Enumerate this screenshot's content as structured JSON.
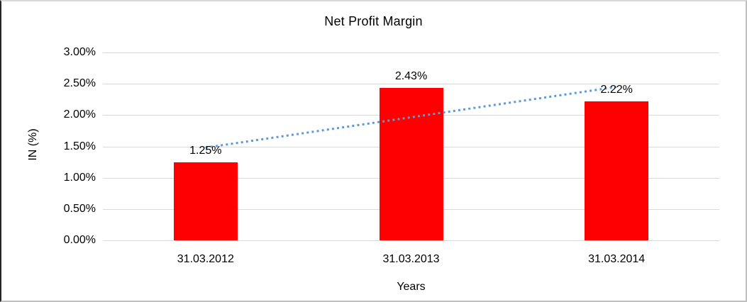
{
  "chart_data": {
    "type": "bar",
    "title": "Net Profit Margin",
    "xlabel": "Years",
    "ylabel": "IN (%)",
    "categories": [
      "31.03.2012",
      "31.03.2013",
      "31.03.2014"
    ],
    "values": [
      1.25,
      2.43,
      2.22
    ],
    "data_labels": [
      "1.25%",
      "2.43%",
      "2.22%"
    ],
    "y_ticks": [
      {
        "label": "3.00%",
        "value": 3.0
      },
      {
        "label": "2.50%",
        "value": 2.5
      },
      {
        "label": "2.00%",
        "value": 2.0
      },
      {
        "label": "1.50%",
        "value": 1.5
      },
      {
        "label": "1.00%",
        "value": 1.0
      },
      {
        "label": "0.50%",
        "value": 0.5
      },
      {
        "label": "0.00%",
        "value": 0.0
      }
    ],
    "ylim": [
      0,
      3
    ],
    "grid": true,
    "legend": false,
    "bar_color": "#FF0000",
    "gridline_color": "#D9D9D9",
    "trendline": {
      "type": "linear",
      "style": "dotted",
      "color": "#5B9BD5",
      "start_value": 1.48,
      "end_value": 2.45
    }
  }
}
